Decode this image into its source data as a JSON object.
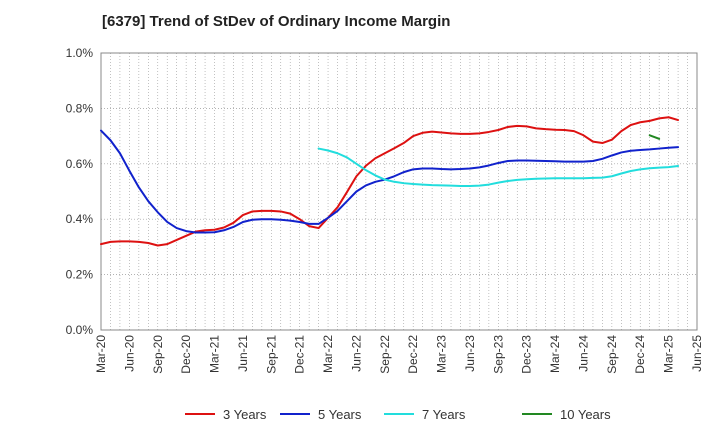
{
  "chart_data": {
    "type": "line",
    "title": "[6379]  Trend of StDev of Ordinary Income Margin",
    "xlabel": "",
    "ylabel": "",
    "ylim": [
      0.0,
      1.0
    ],
    "y_ticks": [
      "0.0%",
      "0.2%",
      "0.4%",
      "0.6%",
      "0.8%",
      "1.0%"
    ],
    "y_tick_values": [
      0.0,
      0.2,
      0.4,
      0.6,
      0.8,
      1.0
    ],
    "x_ticks": [
      "Mar-20",
      "Jun-20",
      "Sep-20",
      "Dec-20",
      "Mar-21",
      "Jun-21",
      "Sep-21",
      "Dec-21",
      "Mar-22",
      "Jun-22",
      "Sep-22",
      "Dec-22",
      "Mar-23",
      "Jun-23",
      "Sep-23",
      "Dec-23",
      "Mar-24",
      "Jun-24",
      "Sep-24",
      "Dec-24",
      "Mar-25",
      "Jun-25"
    ],
    "grid": true,
    "legend_position": "bottom",
    "series": [
      {
        "name": "3 Years",
        "color": "#dd1111",
        "start": "Mar-20",
        "values": [
          0.31,
          0.318,
          0.32,
          0.32,
          0.318,
          0.314,
          0.305,
          0.31,
          0.325,
          0.34,
          0.355,
          0.36,
          0.362,
          0.37,
          0.387,
          0.415,
          0.428,
          0.43,
          0.43,
          0.428,
          0.42,
          0.4,
          0.375,
          0.368,
          0.405,
          0.443,
          0.498,
          0.555,
          0.593,
          0.62,
          0.638,
          0.656,
          0.675,
          0.7,
          0.712,
          0.716,
          0.713,
          0.71,
          0.708,
          0.708,
          0.71,
          0.715,
          0.722,
          0.733,
          0.737,
          0.735,
          0.728,
          0.725,
          0.723,
          0.722,
          0.718,
          0.703,
          0.68,
          0.675,
          0.687,
          0.718,
          0.74,
          0.75,
          0.755,
          0.764,
          0.768,
          0.758
        ]
      },
      {
        "name": "5 Years",
        "color": "#1122cc",
        "start": "Mar-20",
        "values": [
          0.72,
          0.685,
          0.638,
          0.575,
          0.515,
          0.465,
          0.425,
          0.39,
          0.368,
          0.357,
          0.352,
          0.352,
          0.353,
          0.36,
          0.372,
          0.39,
          0.398,
          0.4,
          0.4,
          0.398,
          0.395,
          0.39,
          0.383,
          0.383,
          0.405,
          0.43,
          0.465,
          0.5,
          0.522,
          0.535,
          0.543,
          0.555,
          0.57,
          0.58,
          0.583,
          0.583,
          0.581,
          0.58,
          0.581,
          0.583,
          0.587,
          0.594,
          0.603,
          0.61,
          0.612,
          0.612,
          0.611,
          0.61,
          0.609,
          0.608,
          0.608,
          0.608,
          0.61,
          0.618,
          0.63,
          0.641,
          0.647,
          0.65,
          0.652,
          0.655,
          0.658,
          0.66
        ]
      },
      {
        "name": "7 Years",
        "color": "#22dddd",
        "start": "Feb-22",
        "values": [
          0.655,
          0.648,
          0.638,
          0.623,
          0.6,
          0.577,
          0.558,
          0.543,
          0.535,
          0.53,
          0.527,
          0.525,
          0.523,
          0.522,
          0.521,
          0.52,
          0.52,
          0.521,
          0.525,
          0.532,
          0.538,
          0.542,
          0.544,
          0.546,
          0.547,
          0.548,
          0.548,
          0.548,
          0.548,
          0.549,
          0.55,
          0.555,
          0.565,
          0.574,
          0.58,
          0.584,
          0.586,
          0.588,
          0.592
        ]
      },
      {
        "name": "10 Years",
        "color": "#228822",
        "start": "Jan-25",
        "values": [
          0.703,
          0.69
        ]
      }
    ]
  }
}
